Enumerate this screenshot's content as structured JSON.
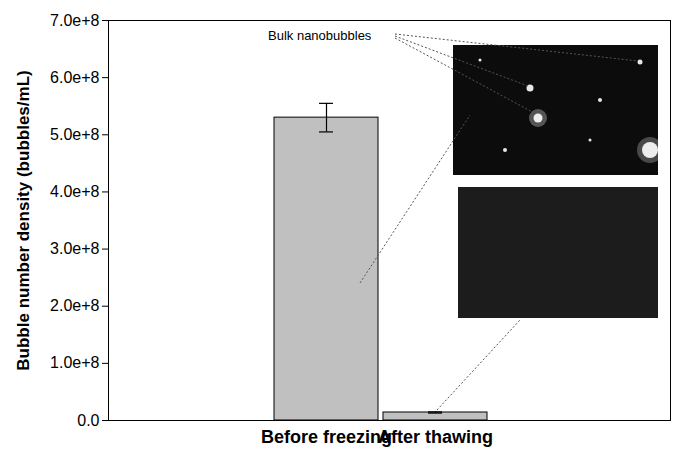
{
  "chart_data": {
    "type": "bar",
    "y_label": "Bubble number density (bubbles/mL)",
    "categories": [
      "Before freezing",
      "After thawing"
    ],
    "values": [
      530000000,
      14000000
    ],
    "errors": [
      25000000,
      1000000
    ],
    "color": "#c0c0c0",
    "annotation": "Bulk nanobubbles",
    "ylim": [
      0,
      700000000
    ],
    "yticks": [
      {
        "value": 0,
        "label": "0.0"
      },
      {
        "value": 100000000,
        "label": "1.0e+8"
      },
      {
        "value": 200000000,
        "label": "2.0e+8"
      },
      {
        "value": 300000000,
        "label": "3.0e+8"
      },
      {
        "value": 400000000,
        "label": "4.0e+8"
      },
      {
        "value": 500000000,
        "label": "5.0e+8"
      },
      {
        "value": 600000000,
        "label": "6.0e+8"
      },
      {
        "value": 700000000,
        "label": "7.0e+8"
      }
    ],
    "grid": false
  }
}
